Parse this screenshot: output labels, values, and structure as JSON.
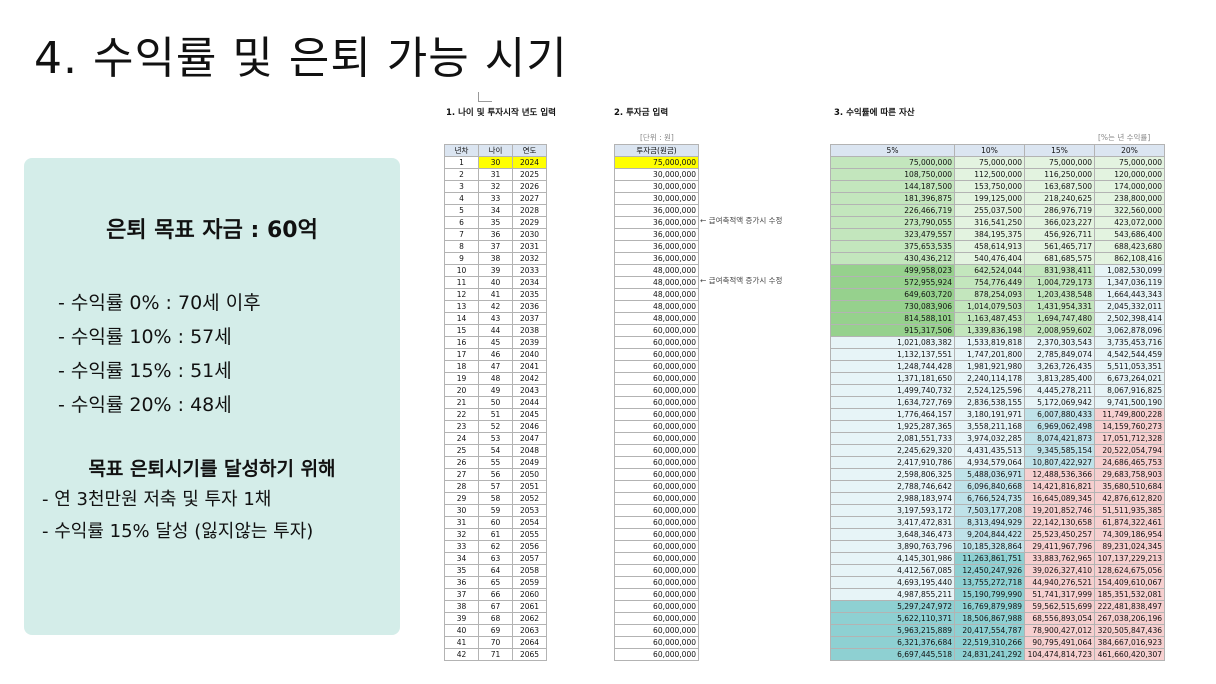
{
  "title": "4. 수익률 및 은퇴 가능 시기",
  "panel": {
    "goal": "은퇴 목표 자금 : 60억",
    "rates": [
      "- 수익률   0% : 70세 이후",
      "- 수익률 10% : 57세",
      "- 수익률 15% : 51세",
      "- 수익률 20% : 48세"
    ],
    "plan_title": "목표 은퇴시기를 달성하기 위해",
    "plans": [
      "- 연 3천만원 저축 및 투자 1채",
      "- 수익률 15% 달성 (잃지않는 투자)"
    ]
  },
  "section1": {
    "title": "1. 나이 및 투자시작 년도 입력",
    "headers": [
      "년차",
      "나이",
      "연도"
    ],
    "rows": [
      [
        "1",
        "30",
        "2024"
      ],
      [
        "2",
        "31",
        "2025"
      ],
      [
        "3",
        "32",
        "2026"
      ],
      [
        "4",
        "33",
        "2027"
      ],
      [
        "5",
        "34",
        "2028"
      ],
      [
        "6",
        "35",
        "2029"
      ],
      [
        "7",
        "36",
        "2030"
      ],
      [
        "8",
        "37",
        "2031"
      ],
      [
        "9",
        "38",
        "2032"
      ],
      [
        "10",
        "39",
        "2033"
      ],
      [
        "11",
        "40",
        "2034"
      ],
      [
        "12",
        "41",
        "2035"
      ],
      [
        "13",
        "42",
        "2036"
      ],
      [
        "14",
        "43",
        "2037"
      ],
      [
        "15",
        "44",
        "2038"
      ],
      [
        "16",
        "45",
        "2039"
      ],
      [
        "17",
        "46",
        "2040"
      ],
      [
        "18",
        "47",
        "2041"
      ],
      [
        "19",
        "48",
        "2042"
      ],
      [
        "20",
        "49",
        "2043"
      ],
      [
        "21",
        "50",
        "2044"
      ],
      [
        "22",
        "51",
        "2045"
      ],
      [
        "23",
        "52",
        "2046"
      ],
      [
        "24",
        "53",
        "2047"
      ],
      [
        "25",
        "54",
        "2048"
      ],
      [
        "26",
        "55",
        "2049"
      ],
      [
        "27",
        "56",
        "2050"
      ],
      [
        "28",
        "57",
        "2051"
      ],
      [
        "29",
        "58",
        "2052"
      ],
      [
        "30",
        "59",
        "2053"
      ],
      [
        "31",
        "60",
        "2054"
      ],
      [
        "32",
        "61",
        "2055"
      ],
      [
        "33",
        "62",
        "2056"
      ],
      [
        "34",
        "63",
        "2057"
      ],
      [
        "35",
        "64",
        "2058"
      ],
      [
        "36",
        "65",
        "2059"
      ],
      [
        "37",
        "66",
        "2060"
      ],
      [
        "38",
        "67",
        "2061"
      ],
      [
        "39",
        "68",
        "2062"
      ],
      [
        "40",
        "69",
        "2063"
      ],
      [
        "41",
        "70",
        "2064"
      ],
      [
        "42",
        "71",
        "2065"
      ]
    ]
  },
  "section2": {
    "title": "2. 투자금 입력",
    "unit": "[단위 : 원]",
    "header": "투자금(원금)",
    "values": [
      "75,000,000",
      "30,000,000",
      "30,000,000",
      "30,000,000",
      "36,000,000",
      "36,000,000",
      "36,000,000",
      "36,000,000",
      "36,000,000",
      "48,000,000",
      "48,000,000",
      "48,000,000",
      "48,000,000",
      "48,000,000",
      "60,000,000",
      "60,000,000",
      "60,000,000",
      "60,000,000",
      "60,000,000",
      "60,000,000",
      "60,000,000",
      "60,000,000",
      "60,000,000",
      "60,000,000",
      "60,000,000",
      "60,000,000",
      "60,000,000",
      "60,000,000",
      "60,000,000",
      "60,000,000",
      "60,000,000",
      "60,000,000",
      "60,000,000",
      "60,000,000",
      "60,000,000",
      "60,000,000",
      "60,000,000",
      "60,000,000",
      "60,000,000",
      "60,000,000",
      "60,000,000",
      "60,000,000"
    ],
    "memos": [
      {
        "row": 6,
        "text": "← 급여축적액 증가시 수정"
      },
      {
        "row": 11,
        "text": "← 급여축적액 증가시 수정"
      }
    ]
  },
  "section3": {
    "title": "3. 수익률에 따른 자산",
    "unit": "[%는 년 수익률]",
    "headers": [
      "5%",
      "10%",
      "15%",
      "20%"
    ],
    "rows": [
      [
        "75,000,000",
        "75,000,000",
        "75,000,000",
        "75,000,000"
      ],
      [
        "108,750,000",
        "112,500,000",
        "116,250,000",
        "120,000,000"
      ],
      [
        "144,187,500",
        "153,750,000",
        "163,687,500",
        "174,000,000"
      ],
      [
        "181,396,875",
        "199,125,000",
        "218,240,625",
        "238,800,000"
      ],
      [
        "226,466,719",
        "255,037,500",
        "286,976,719",
        "322,560,000"
      ],
      [
        "273,790,055",
        "316,541,250",
        "366,023,227",
        "423,072,000"
      ],
      [
        "323,479,557",
        "384,195,375",
        "456,926,711",
        "543,686,400"
      ],
      [
        "375,653,535",
        "458,614,913",
        "561,465,717",
        "688,423,680"
      ],
      [
        "430,436,212",
        "540,476,404",
        "681,685,575",
        "862,108,416"
      ],
      [
        "499,958,023",
        "642,524,044",
        "831,938,411",
        "1,082,530,099"
      ],
      [
        "572,955,924",
        "754,776,449",
        "1,004,729,173",
        "1,347,036,119"
      ],
      [
        "649,603,720",
        "878,254,093",
        "1,203,438,548",
        "1,664,443,343"
      ],
      [
        "730,083,906",
        "1,014,079,503",
        "1,431,954,331",
        "2,045,332,011"
      ],
      [
        "814,588,101",
        "1,163,487,453",
        "1,694,747,480",
        "2,502,398,414"
      ],
      [
        "915,317,506",
        "1,339,836,198",
        "2,008,959,602",
        "3,062,878,096"
      ],
      [
        "1,021,083,382",
        "1,533,819,818",
        "2,370,303,543",
        "3,735,453,716"
      ],
      [
        "1,132,137,551",
        "1,747,201,800",
        "2,785,849,074",
        "4,542,544,459"
      ],
      [
        "1,248,744,428",
        "1,981,921,980",
        "3,263,726,435",
        "5,511,053,351"
      ],
      [
        "1,371,181,650",
        "2,240,114,178",
        "3,813,285,400",
        "6,673,264,021"
      ],
      [
        "1,499,740,732",
        "2,524,125,596",
        "4,445,278,211",
        "8,067,916,825"
      ],
      [
        "1,634,727,769",
        "2,836,538,155",
        "5,172,069,942",
        "9,741,500,190"
      ],
      [
        "1,776,464,157",
        "3,180,191,971",
        "6,007,880,433",
        "11,749,800,228"
      ],
      [
        "1,925,287,365",
        "3,558,211,168",
        "6,969,062,498",
        "14,159,760,273"
      ],
      [
        "2,081,551,733",
        "3,974,032,285",
        "8,074,421,873",
        "17,051,712,328"
      ],
      [
        "2,245,629,320",
        "4,431,435,513",
        "9,345,585,154",
        "20,522,054,794"
      ],
      [
        "2,417,910,786",
        "4,934,579,064",
        "10,807,422,927",
        "24,686,465,753"
      ],
      [
        "2,598,806,325",
        "5,488,036,971",
        "12,488,536,366",
        "29,683,758,903"
      ],
      [
        "2,788,746,642",
        "6,096,840,668",
        "14,421,816,821",
        "35,680,510,684"
      ],
      [
        "2,988,183,974",
        "6,766,524,735",
        "16,645,089,345",
        "42,876,612,820"
      ],
      [
        "3,197,593,172",
        "7,503,177,208",
        "19,201,852,746",
        "51,511,935,385"
      ],
      [
        "3,417,472,831",
        "8,313,494,929",
        "22,142,130,658",
        "61,874,322,461"
      ],
      [
        "3,648,346,473",
        "9,204,844,422",
        "25,523,450,257",
        "74,309,186,954"
      ],
      [
        "3,890,763,796",
        "10,185,328,864",
        "29,411,967,796",
        "89,231,024,345"
      ],
      [
        "4,145,301,986",
        "11,263,861,751",
        "33,883,762,965",
        "107,137,229,213"
      ],
      [
        "4,412,567,085",
        "12,450,247,926",
        "39,026,327,410",
        "128,624,675,056"
      ],
      [
        "4,693,195,440",
        "13,755,272,718",
        "44,940,276,521",
        "154,409,610,067"
      ],
      [
        "4,987,855,211",
        "15,190,799,990",
        "51,741,317,999",
        "185,351,532,081"
      ],
      [
        "5,297,247,972",
        "16,769,879,989",
        "59,562,515,699",
        "222,481,838,497"
      ],
      [
        "5,622,110,371",
        "18,506,867,988",
        "68,556,893,054",
        "267,038,206,196"
      ],
      [
        "5,963,215,889",
        "20,417,554,787",
        "78,900,427,012",
        "320,505,847,436"
      ],
      [
        "6,321,376,684",
        "22,519,310,266",
        "90,795,491,064",
        "384,667,016,923"
      ],
      [
        "6,697,445,518",
        "24,831,241,292",
        "104,474,814,723",
        "461,660,420,307"
      ]
    ],
    "colors": {
      "green_light": "#e3f3e0",
      "green_mid": "#c3e6bd",
      "green_strong": "#96d18d",
      "blue_light": "#e7f4f7",
      "blue_mid": "#bfe2e9",
      "teal_strong": "#8ed0d2",
      "pink": "#f6cfcf"
    }
  }
}
